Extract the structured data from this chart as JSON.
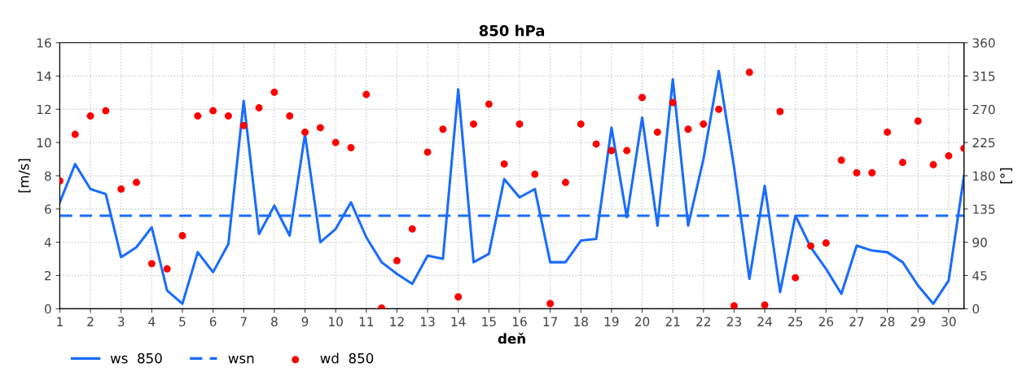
{
  "chart_data": {
    "type": "line",
    "title": "850 hPa",
    "xlabel": "deň",
    "ylabel": "[m/s]",
    "y2label": "[°]",
    "x": [
      1,
      1.5,
      2,
      2.5,
      3,
      3.5,
      4,
      4.5,
      5,
      5.5,
      6,
      6.5,
      7,
      7.5,
      8,
      8.5,
      9,
      9.5,
      10,
      10.5,
      11,
      11.5,
      12,
      12.5,
      13,
      13.5,
      14,
      14.5,
      15,
      15.5,
      16,
      16.5,
      17,
      17.5,
      18,
      18.5,
      19,
      19.5,
      20,
      20.5,
      21,
      21.5,
      22,
      22.5,
      23,
      23.5,
      24,
      24.5,
      25,
      25.5,
      26,
      26.5,
      27,
      27.5,
      28,
      28.5,
      29,
      29.5,
      30,
      30.5
    ],
    "series": [
      {
        "name": "ws  850",
        "color": "#1a6cff",
        "line_style": "solid",
        "marker": "none",
        "values": [
          6.4,
          8.7,
          7.2,
          6.9,
          3.1,
          3.7,
          4.9,
          1.1,
          0.3,
          3.4,
          2.2,
          3.9,
          12.5,
          4.5,
          6.2,
          4.4,
          10.5,
          4.0,
          4.8,
          6.4,
          4.3,
          2.8,
          2.1,
          1.5,
          3.2,
          3.0,
          13.2,
          2.8,
          3.3,
          7.8,
          6.7,
          7.2,
          2.8,
          2.8,
          4.1,
          4.2,
          10.9,
          5.5,
          11.5,
          5.0,
          13.8,
          5.0,
          9.0,
          14.3,
          8.5,
          1.8,
          7.4,
          1.0,
          5.6,
          3.7,
          2.4,
          0.9,
          3.8,
          3.5,
          3.4,
          2.8,
          1.4,
          0.3,
          1.7,
          8.0
        ]
      },
      {
        "name": "wsn",
        "color": "#1a6cff",
        "line_style": "dashed",
        "marker": "none",
        "x": [
          1,
          30.5
        ],
        "values": [
          5.6,
          5.6
        ]
      },
      {
        "name": "wd  850",
        "type": "scatter",
        "axis": "y2",
        "color": "#ff0000",
        "marker": "circle",
        "values": [
          173,
          236,
          261,
          268,
          162,
          171,
          61,
          54,
          99,
          261,
          268,
          261,
          248,
          272,
          293,
          261,
          239,
          245,
          225,
          218,
          290,
          1,
          65,
          108,
          212,
          243,
          16,
          250,
          277,
          196,
          250,
          182,
          7,
          171,
          250,
          223,
          214,
          214,
          286,
          239,
          279,
          243,
          250,
          270,
          4,
          320,
          5,
          267,
          42,
          85,
          89,
          201,
          184,
          184,
          239,
          198,
          254,
          195,
          207,
          217
        ]
      }
    ],
    "xlim": [
      1,
      30.5
    ],
    "xticks": [
      1,
      2,
      3,
      4,
      5,
      6,
      7,
      8,
      9,
      10,
      11,
      12,
      13,
      14,
      15,
      16,
      17,
      18,
      19,
      20,
      21,
      22,
      23,
      24,
      25,
      26,
      27,
      28,
      29,
      30
    ],
    "ylim": [
      0,
      16
    ],
    "yticks": [
      0,
      2,
      4,
      6,
      8,
      10,
      12,
      14,
      16
    ],
    "y2lim": [
      0,
      360
    ],
    "y2ticks": [
      0,
      45,
      90,
      135,
      180,
      225,
      270,
      315,
      360
    ],
    "grid": true,
    "legend": "bottom left"
  }
}
